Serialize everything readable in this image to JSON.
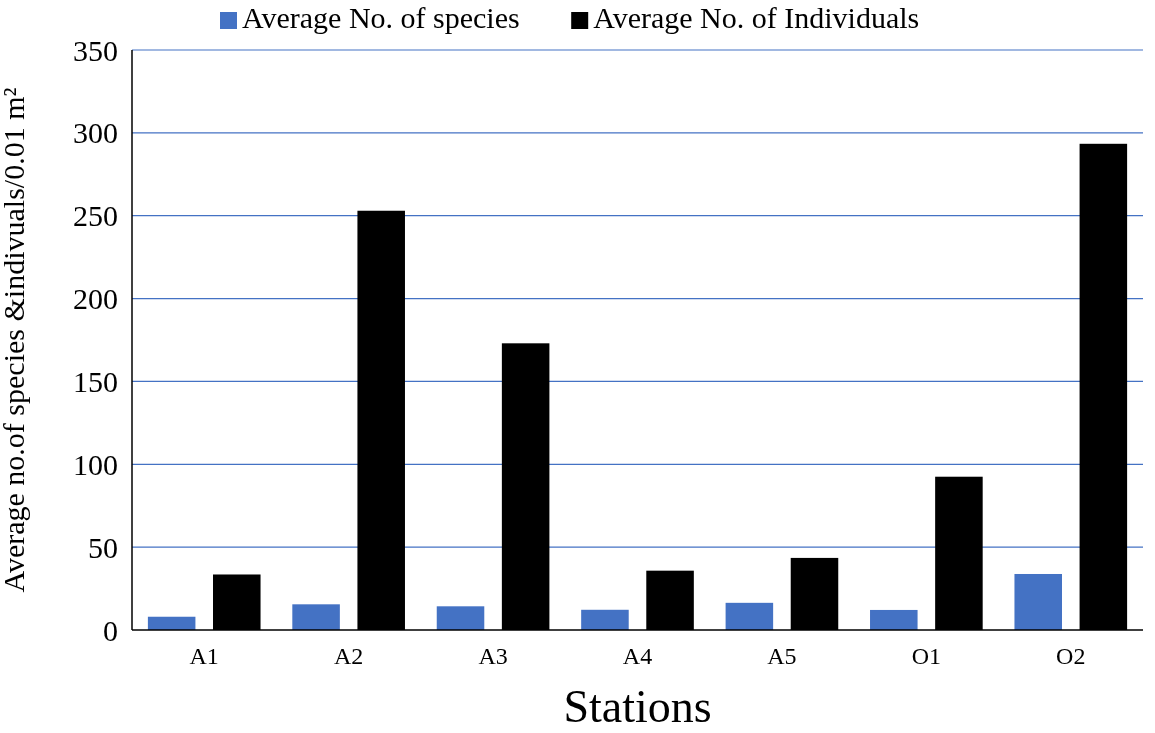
{
  "chart_data": {
    "type": "bar",
    "xlabel": "Stations",
    "ylabel": "Average no.of species &indivuals/0.01 m²",
    "categories": [
      "A1",
      "A2",
      "A3",
      "A4",
      "A5",
      "O1",
      "O2"
    ],
    "series": [
      {
        "name": "Average No. of species",
        "color": "#4472c4",
        "values": [
          8,
          15.5,
          14.3,
          12.2,
          16.4,
          12.1,
          33.8
        ]
      },
      {
        "name": "Average No. of Individuals",
        "color": "#000000",
        "values": [
          33.5,
          253,
          173,
          35.8,
          43.5,
          92.5,
          293.4
        ]
      }
    ],
    "ylim": [
      0,
      350
    ],
    "yticks": [
      0,
      50,
      100,
      150,
      200,
      250,
      300,
      350
    ],
    "grid": "y",
    "legend": "top"
  }
}
